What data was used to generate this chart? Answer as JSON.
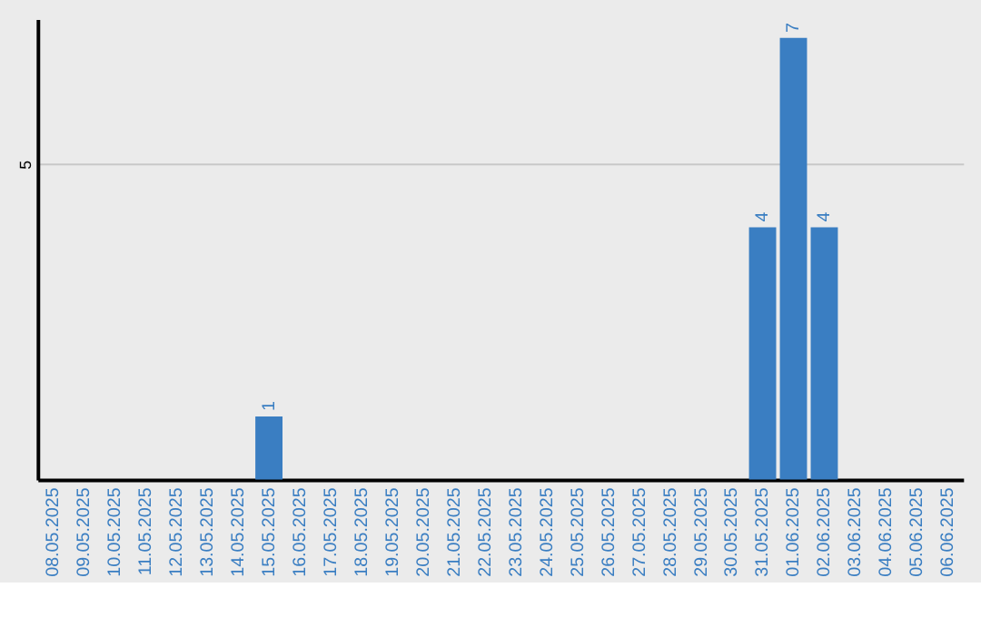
{
  "chart_data": {
    "type": "bar",
    "categories": [
      "08.05.2025",
      "09.05.2025",
      "10.05.2025",
      "11.05.2025",
      "12.05.2025",
      "13.05.2025",
      "14.05.2025",
      "15.05.2025",
      "16.05.2025",
      "17.05.2025",
      "18.05.2025",
      "19.05.2025",
      "20.05.2025",
      "21.05.2025",
      "22.05.2025",
      "23.05.2025",
      "24.05.2025",
      "25.05.2025",
      "26.05.2025",
      "27.05.2025",
      "28.05.2025",
      "29.05.2025",
      "30.05.2025",
      "31.05.2025",
      "01.06.2025",
      "02.06.2025",
      "03.06.2025",
      "04.06.2025",
      "05.06.2025",
      "06.06.2025"
    ],
    "values": [
      0,
      0,
      0,
      0,
      0,
      0,
      0,
      1,
      0,
      0,
      0,
      0,
      0,
      0,
      0,
      0,
      0,
      0,
      0,
      0,
      0,
      0,
      0,
      4,
      7,
      4,
      0,
      0,
      0,
      0
    ],
    "value_labels": [
      null,
      null,
      null,
      null,
      null,
      null,
      null,
      "1",
      null,
      null,
      null,
      null,
      null,
      null,
      null,
      null,
      null,
      null,
      null,
      null,
      null,
      null,
      null,
      "4",
      "7",
      "4",
      null,
      null,
      null,
      null
    ],
    "color": "#3a7ec2",
    "ylim": [
      0,
      7.3
    ],
    "yticks": [
      5
    ],
    "grid": "y"
  }
}
